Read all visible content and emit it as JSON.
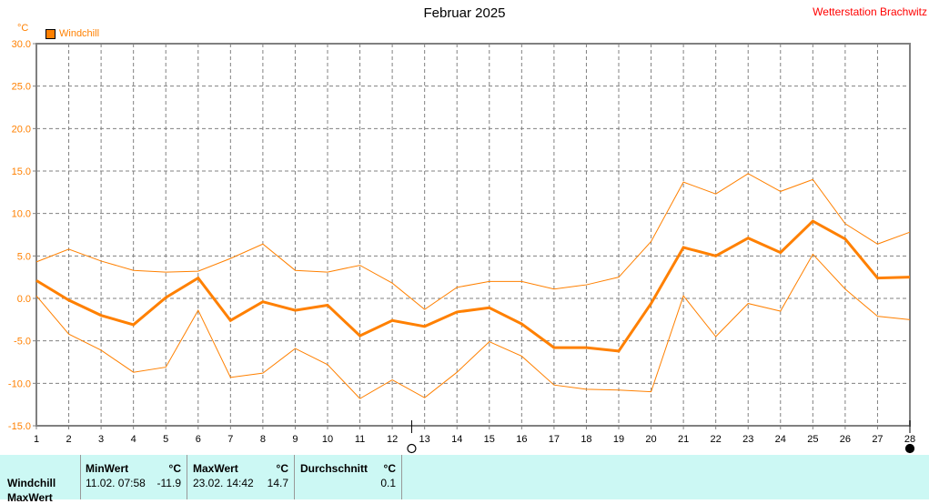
{
  "header": {
    "title": "Februar 2025",
    "station": "Wetterstation Brachwitz",
    "unit": "°C",
    "legend_label": "Windchill"
  },
  "colors": {
    "series": "#ff8000",
    "station": "#ff0000",
    "table_bg": "#ccf8f4",
    "grid": "#808080"
  },
  "chart_data": {
    "type": "line",
    "title": "Februar 2025",
    "xlabel": "",
    "ylabel": "°C",
    "ylim": [
      -15,
      30
    ],
    "yticks": [
      30.0,
      25.0,
      20.0,
      15.0,
      10.0,
      5.0,
      0.0,
      -5.0,
      -10.0,
      -15.0
    ],
    "ytick_labels": [
      "30.0",
      "25.0",
      "20.0",
      "15.0",
      "10.0",
      "5.0",
      "0.0",
      "-5.0",
      "-10.0",
      "-15.0"
    ],
    "x": [
      1,
      2,
      3,
      4,
      5,
      6,
      7,
      8,
      9,
      10,
      11,
      12,
      13,
      14,
      15,
      16,
      17,
      18,
      19,
      20,
      21,
      22,
      23,
      24,
      25,
      26,
      27,
      28
    ],
    "grid": true,
    "legend": [
      "Windchill"
    ],
    "legend_position": "top-left",
    "series": [
      {
        "name": "Windchill Max",
        "width": 1,
        "values": [
          4.3,
          5.8,
          4.4,
          3.3,
          3.1,
          3.2,
          4.7,
          6.4,
          3.3,
          3.1,
          3.9,
          1.8,
          -1.3,
          1.3,
          2.0,
          2.0,
          1.1,
          1.6,
          2.5,
          6.7,
          13.7,
          12.3,
          14.7,
          12.6,
          14.0,
          8.8,
          6.4,
          7.8
        ]
      },
      {
        "name": "Windchill",
        "width": 3,
        "values": [
          2.1,
          -0.2,
          -2.0,
          -3.1,
          0.1,
          2.4,
          -2.6,
          -0.4,
          -1.4,
          -0.8,
          -4.4,
          -2.6,
          -3.3,
          -1.6,
          -1.1,
          -3.0,
          -5.8,
          -5.8,
          -6.2,
          -0.6,
          6.0,
          5.0,
          7.1,
          5.4,
          9.1,
          7.0,
          2.4,
          2.5
        ]
      },
      {
        "name": "Windchill Min",
        "width": 1,
        "values": [
          0.3,
          -4.2,
          -6.1,
          -8.7,
          -8.1,
          -1.4,
          -9.3,
          -8.8,
          -5.9,
          -7.8,
          -11.8,
          -9.6,
          -11.7,
          -8.7,
          -5.1,
          -6.8,
          -10.2,
          -10.7,
          -10.8,
          -11.0,
          0.3,
          -4.5,
          -0.6,
          -1.5,
          5.2,
          1.1,
          -2.1,
          -2.5
        ]
      }
    ],
    "markers": [
      {
        "type": "open-circle",
        "x": 12.6
      },
      {
        "type": "filled-circle",
        "x": 28
      }
    ]
  },
  "table": {
    "row_labels": [
      "Windchill",
      "MaxWert"
    ],
    "columns": [
      {
        "header": "MinWert",
        "unit": "°C",
        "time": "11.02.  07:58",
        "value": "-11.9"
      },
      {
        "header": "MaxWert",
        "unit": "°C",
        "time": "23.02.  14:42",
        "value": "14.7"
      },
      {
        "header": "Durchschnitt",
        "unit": "°C",
        "time": "",
        "value": "0.1"
      }
    ]
  }
}
